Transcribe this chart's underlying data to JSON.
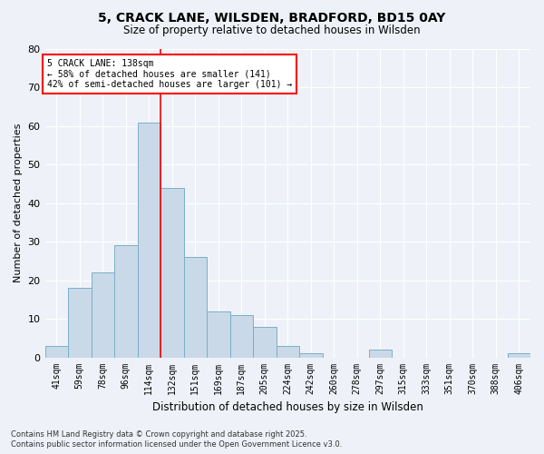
{
  "title_line1": "5, CRACK LANE, WILSDEN, BRADFORD, BD15 0AY",
  "title_line2": "Size of property relative to detached houses in Wilsden",
  "xlabel": "Distribution of detached houses by size in Wilsden",
  "ylabel": "Number of detached properties",
  "categories": [
    "41sqm",
    "59sqm",
    "78sqm",
    "96sqm",
    "114sqm",
    "132sqm",
    "151sqm",
    "169sqm",
    "187sqm",
    "205sqm",
    "224sqm",
    "242sqm",
    "260sqm",
    "278sqm",
    "297sqm",
    "315sqm",
    "333sqm",
    "351sqm",
    "370sqm",
    "388sqm",
    "406sqm"
  ],
  "values": [
    3,
    18,
    22,
    29,
    61,
    44,
    26,
    12,
    11,
    8,
    3,
    1,
    0,
    0,
    2,
    0,
    0,
    0,
    0,
    0,
    1
  ],
  "bar_color": "#c9d9e8",
  "bar_edge_color": "#7aafc8",
  "background_color": "#eef2f8",
  "grid_color": "#ffffff",
  "ylim": [
    0,
    80
  ],
  "yticks": [
    0,
    10,
    20,
    30,
    40,
    50,
    60,
    70,
    80
  ],
  "annotation_text": "5 CRACK LANE: 138sqm\n← 58% of detached houses are smaller (141)\n42% of semi-detached houses are larger (101) →",
  "vline_x_index": 4.5,
  "footer_line1": "Contains HM Land Registry data © Crown copyright and database right 2025.",
  "footer_line2": "Contains public sector information licensed under the Open Government Licence v3.0."
}
